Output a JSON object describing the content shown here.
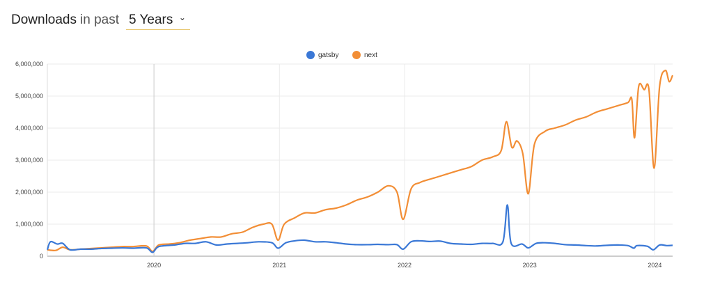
{
  "header": {
    "title": "Downloads",
    "in_past": "in past",
    "period": "5 Years"
  },
  "chart_data": {
    "type": "line",
    "title": "",
    "xlabel": "",
    "ylabel": "",
    "ylim": [
      0,
      6000000
    ],
    "xlim": [
      "2019-02-24",
      "2024-02-22"
    ],
    "yticks": [
      "0",
      "1,000,000",
      "2,000,000",
      "3,000,000",
      "4,000,000",
      "5,000,000",
      "6,000,000"
    ],
    "xticks": [
      "2020",
      "2021",
      "2022",
      "2023",
      "2024"
    ],
    "grid": true,
    "legend": "top-center",
    "series": [
      {
        "name": "gatsby",
        "color": "#3a78d6",
        "points": [
          [
            "2019-02-24",
            200000
          ],
          [
            "2019-03-05",
            450000
          ],
          [
            "2019-03-25",
            380000
          ],
          [
            "2019-04-10",
            400000
          ],
          [
            "2019-05-01",
            200000
          ],
          [
            "2019-06-01",
            220000
          ],
          [
            "2019-07-01",
            220000
          ],
          [
            "2019-08-01",
            240000
          ],
          [
            "2019-09-01",
            250000
          ],
          [
            "2019-10-01",
            260000
          ],
          [
            "2019-11-01",
            250000
          ],
          [
            "2019-12-10",
            260000
          ],
          [
            "2019-12-28",
            120000
          ],
          [
            "2020-01-15",
            300000
          ],
          [
            "2020-03-01",
            350000
          ],
          [
            "2020-04-01",
            400000
          ],
          [
            "2020-05-01",
            400000
          ],
          [
            "2020-06-01",
            450000
          ],
          [
            "2020-07-01",
            350000
          ],
          [
            "2020-08-01",
            380000
          ],
          [
            "2020-09-01",
            400000
          ],
          [
            "2020-10-01",
            420000
          ],
          [
            "2020-11-01",
            450000
          ],
          [
            "2020-12-10",
            420000
          ],
          [
            "2020-12-28",
            250000
          ],
          [
            "2021-01-20",
            420000
          ],
          [
            "2021-02-15",
            480000
          ],
          [
            "2021-03-15",
            500000
          ],
          [
            "2021-04-15",
            450000
          ],
          [
            "2021-05-15",
            450000
          ],
          [
            "2021-06-15",
            420000
          ],
          [
            "2021-07-15",
            380000
          ],
          [
            "2021-08-15",
            360000
          ],
          [
            "2021-09-15",
            360000
          ],
          [
            "2021-10-15",
            370000
          ],
          [
            "2021-11-15",
            360000
          ],
          [
            "2021-12-10",
            360000
          ],
          [
            "2021-12-28",
            220000
          ],
          [
            "2022-01-20",
            450000
          ],
          [
            "2022-02-15",
            480000
          ],
          [
            "2022-03-15",
            460000
          ],
          [
            "2022-04-15",
            470000
          ],
          [
            "2022-05-15",
            400000
          ],
          [
            "2022-06-15",
            380000
          ],
          [
            "2022-07-15",
            370000
          ],
          [
            "2022-08-15",
            400000
          ],
          [
            "2022-09-15",
            400000
          ],
          [
            "2022-10-15",
            450000
          ],
          [
            "2022-10-28",
            1600000
          ],
          [
            "2022-11-08",
            400000
          ],
          [
            "2022-12-10",
            380000
          ],
          [
            "2022-12-28",
            260000
          ],
          [
            "2023-01-20",
            400000
          ],
          [
            "2023-02-15",
            420000
          ],
          [
            "2023-03-15",
            400000
          ],
          [
            "2023-04-15",
            360000
          ],
          [
            "2023-05-15",
            350000
          ],
          [
            "2023-06-15",
            330000
          ],
          [
            "2023-07-15",
            320000
          ],
          [
            "2023-08-15",
            340000
          ],
          [
            "2023-09-15",
            350000
          ],
          [
            "2023-10-15",
            330000
          ],
          [
            "2023-11-01",
            250000
          ],
          [
            "2023-11-10",
            330000
          ],
          [
            "2023-12-10",
            310000
          ],
          [
            "2023-12-28",
            200000
          ],
          [
            "2024-01-15",
            350000
          ],
          [
            "2024-02-05",
            330000
          ],
          [
            "2024-02-22",
            340000
          ]
        ]
      },
      {
        "name": "next",
        "color": "#f28e36",
        "points": [
          [
            "2019-02-24",
            200000
          ],
          [
            "2019-03-20",
            180000
          ],
          [
            "2019-04-10",
            280000
          ],
          [
            "2019-05-01",
            200000
          ],
          [
            "2019-06-01",
            220000
          ],
          [
            "2019-07-01",
            240000
          ],
          [
            "2019-08-01",
            260000
          ],
          [
            "2019-09-01",
            280000
          ],
          [
            "2019-10-01",
            300000
          ],
          [
            "2019-11-01",
            300000
          ],
          [
            "2019-12-10",
            320000
          ],
          [
            "2019-12-28",
            150000
          ],
          [
            "2020-01-15",
            350000
          ],
          [
            "2020-02-15",
            380000
          ],
          [
            "2020-03-15",
            420000
          ],
          [
            "2020-04-15",
            500000
          ],
          [
            "2020-05-15",
            550000
          ],
          [
            "2020-06-15",
            600000
          ],
          [
            "2020-07-15",
            600000
          ],
          [
            "2020-08-15",
            700000
          ],
          [
            "2020-09-15",
            750000
          ],
          [
            "2020-10-15",
            900000
          ],
          [
            "2020-11-15",
            1000000
          ],
          [
            "2020-12-10",
            1000000
          ],
          [
            "2020-12-28",
            500000
          ],
          [
            "2021-01-15",
            1000000
          ],
          [
            "2021-02-15",
            1200000
          ],
          [
            "2021-03-15",
            1350000
          ],
          [
            "2021-04-15",
            1350000
          ],
          [
            "2021-05-15",
            1450000
          ],
          [
            "2021-06-15",
            1500000
          ],
          [
            "2021-07-15",
            1600000
          ],
          [
            "2021-08-15",
            1750000
          ],
          [
            "2021-09-15",
            1850000
          ],
          [
            "2021-10-15",
            2000000
          ],
          [
            "2021-11-15",
            2200000
          ],
          [
            "2021-12-10",
            2000000
          ],
          [
            "2021-12-28",
            1150000
          ],
          [
            "2022-01-20",
            2100000
          ],
          [
            "2022-02-15",
            2300000
          ],
          [
            "2022-03-15",
            2400000
          ],
          [
            "2022-04-15",
            2500000
          ],
          [
            "2022-05-15",
            2600000
          ],
          [
            "2022-06-15",
            2700000
          ],
          [
            "2022-07-15",
            2800000
          ],
          [
            "2022-08-15",
            3000000
          ],
          [
            "2022-09-15",
            3100000
          ],
          [
            "2022-10-10",
            3300000
          ],
          [
            "2022-10-25",
            4200000
          ],
          [
            "2022-11-10",
            3400000
          ],
          [
            "2022-11-25",
            3600000
          ],
          [
            "2022-12-12",
            3200000
          ],
          [
            "2022-12-28",
            1950000
          ],
          [
            "2023-01-15",
            3500000
          ],
          [
            "2023-02-15",
            3900000
          ],
          [
            "2023-03-15",
            4000000
          ],
          [
            "2023-04-15",
            4100000
          ],
          [
            "2023-05-15",
            4250000
          ],
          [
            "2023-06-15",
            4350000
          ],
          [
            "2023-07-15",
            4500000
          ],
          [
            "2023-08-15",
            4600000
          ],
          [
            "2023-09-15",
            4700000
          ],
          [
            "2023-10-15",
            4800000
          ],
          [
            "2023-10-26",
            4900000
          ],
          [
            "2023-11-03",
            3700000
          ],
          [
            "2023-11-15",
            5300000
          ],
          [
            "2023-12-01",
            5200000
          ],
          [
            "2023-12-15",
            5200000
          ],
          [
            "2023-12-30",
            2750000
          ],
          [
            "2024-01-15",
            5300000
          ],
          [
            "2024-02-01",
            5800000
          ],
          [
            "2024-02-12",
            5450000
          ],
          [
            "2024-02-22",
            5650000
          ]
        ]
      }
    ]
  }
}
